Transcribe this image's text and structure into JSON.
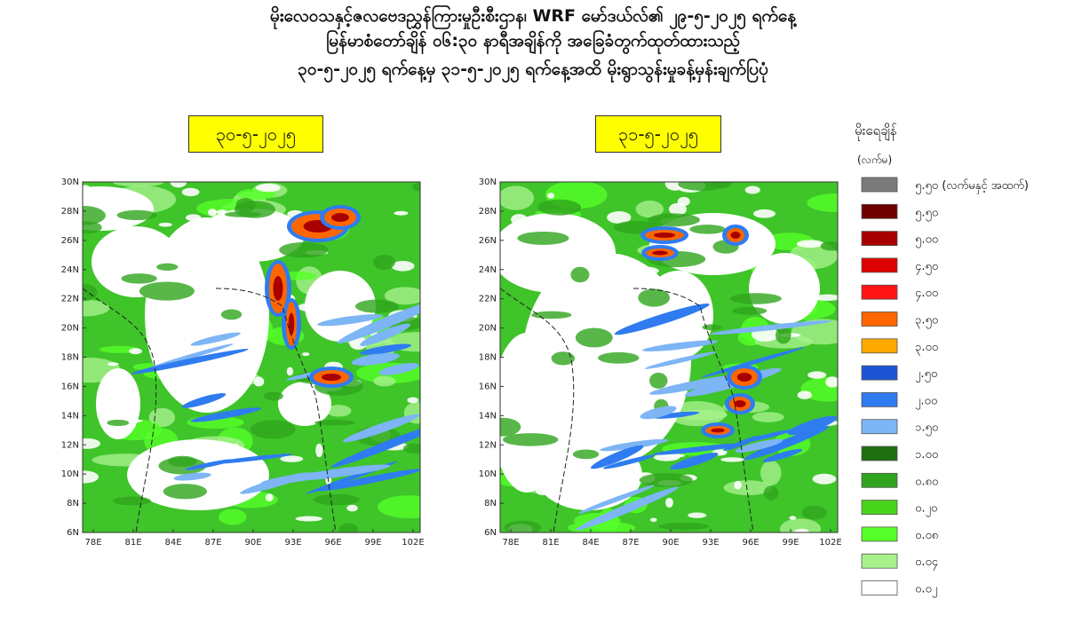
{
  "header": {
    "lines": [
      "မိုးလေဝသနှင့်ဇလဗေဒညွှန်ကြားမှုဦးစီးဌာန၊ WRF မော်ဒယ်လ်၏ ၂၉-၅-၂၀၂၅ ရက်နေ့",
      "မြန်မာစံတော်ချိန် ၀၆:၃၀ နာရီအချိန်ကို အခြေခံတွက်ထုတ်ထားသည့်",
      "၃၀-၅-၂၀၂၅ ရက်နေ့မှ ၃၁-၅-၂၀၂၅ ရက်နေ့အထိ မိုးရွာသွန်းမှုခန့်မှန်းချက်ပြပုံ"
    ]
  },
  "maps": [
    {
      "date": "၃၀-၅-၂၀၂၅"
    },
    {
      "date": "၃၁-၅-၂၀၂၅"
    }
  ],
  "axes": {
    "yticks": [
      "30N",
      "28N",
      "26N",
      "24N",
      "22N",
      "20N",
      "18N",
      "16N",
      "14N",
      "12N",
      "10N",
      "8N",
      "6N"
    ],
    "xticks": [
      "78E",
      "81E",
      "84E",
      "87E",
      "90E",
      "93E",
      "96E",
      "99E",
      "102E"
    ]
  },
  "legend": {
    "title": "မိုးရေချိန်",
    "unit": "(လက်မ)",
    "items": [
      {
        "label": "၅.၅၀ (လက်မနှင့် အထက်)",
        "color": "#7a7a7a"
      },
      {
        "label": "၅.၅၀",
        "color": "#6e0000"
      },
      {
        "label": "၅.၀၀",
        "color": "#a80000"
      },
      {
        "label": "၄.၅၀",
        "color": "#dd0000"
      },
      {
        "label": "၄.၀၀",
        "color": "#ff1414"
      },
      {
        "label": "၃.၅၀",
        "color": "#ff6600"
      },
      {
        "label": "၃.၀၀",
        "color": "#ffa800"
      },
      {
        "label": "၂.၅၀",
        "color": "#1c54d4"
      },
      {
        "label": "၂.၀၀",
        "color": "#2f7cf0"
      },
      {
        "label": "၁.၅၀",
        "color": "#7db5f5"
      },
      {
        "label": "၁.၀၀",
        "color": "#1f6e12"
      },
      {
        "label": "၀.၈၀",
        "color": "#2fa51d"
      },
      {
        "label": "၀.၂၀",
        "color": "#49d41c"
      },
      {
        "label": "၀.၀၈",
        "color": "#55ff28"
      },
      {
        "label": "၀.၀၄",
        "color": "#a6f18c"
      },
      {
        "label": "၀.၀၂",
        "color": "#ffffff"
      }
    ]
  }
}
